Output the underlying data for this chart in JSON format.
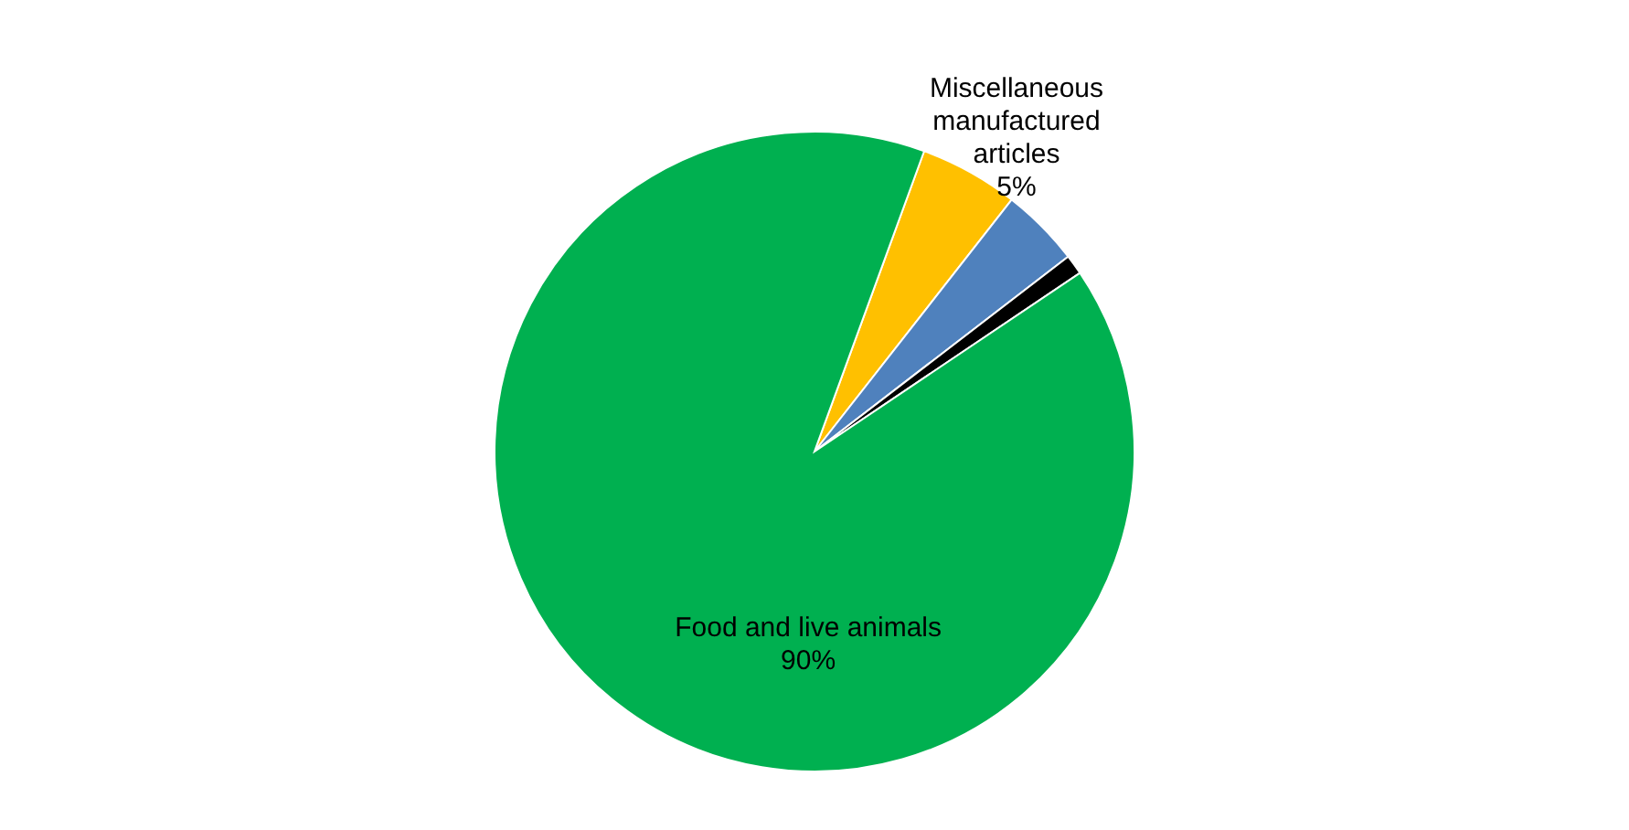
{
  "chart_data": {
    "type": "pie",
    "categories": [
      "Miscellaneous manufactured articles",
      null,
      null,
      "Food and live animals"
    ],
    "values": [
      5,
      4,
      1,
      90
    ],
    "colors": [
      "#ffc000",
      "#4f81bd",
      "#000000",
      "#00b050"
    ],
    "value_labels": [
      "5%",
      null,
      null,
      "90%"
    ]
  }
}
